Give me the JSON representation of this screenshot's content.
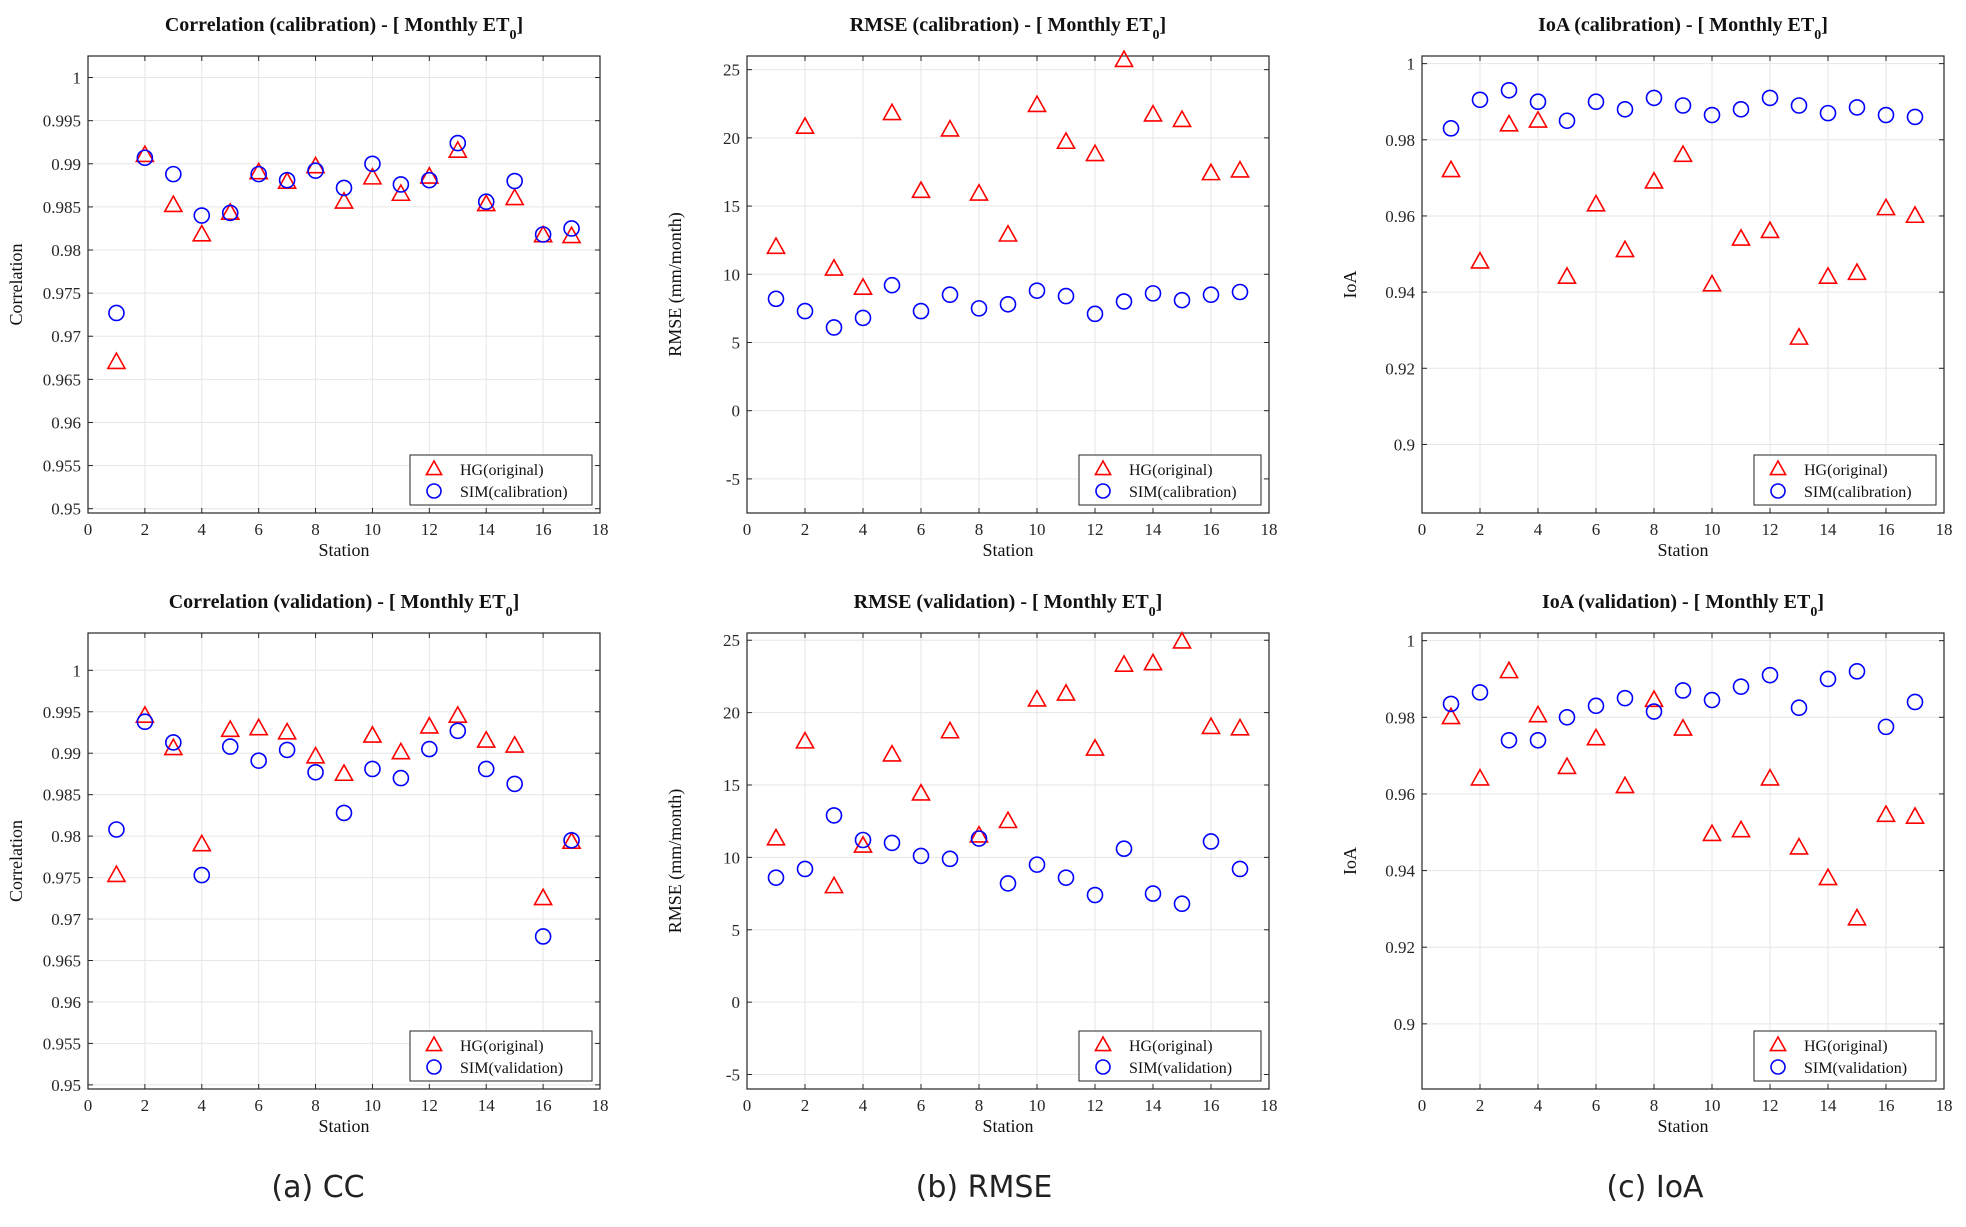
{
  "captions": [
    "(a) CC",
    "(b) RMSE",
    "(c) IoA"
  ],
  "colors": {
    "hg": "#ff0000",
    "sim": "#0000ff",
    "axis": "#262626",
    "grid": "#e6e6e6"
  },
  "chart_data": [
    {
      "type": "scatter",
      "title": "Correlation (calibration) - [ Monthly  ET",
      "title_sub": "0",
      "title_end": "]",
      "xlabel": "Station",
      "ylabel": "Correlation",
      "xlim": [
        0,
        18
      ],
      "ylim": [
        0.9495,
        1.0025
      ],
      "xticks": [
        0,
        2,
        4,
        6,
        8,
        10,
        12,
        14,
        16,
        18
      ],
      "yticks": [
        0.95,
        0.955,
        0.96,
        0.965,
        0.97,
        0.975,
        0.98,
        0.985,
        0.99,
        0.995,
        1
      ],
      "ytick_labels": [
        "0.95",
        "0.955",
        "0.96",
        "0.965",
        "0.97",
        "0.975",
        "0.98",
        "0.985",
        "0.99",
        "0.995",
        "1"
      ],
      "x": [
        1,
        2,
        3,
        4,
        5,
        6,
        7,
        8,
        9,
        10,
        11,
        12,
        13,
        14,
        15,
        16,
        17
      ],
      "series": [
        {
          "name": "HG(original)",
          "marker": "triangle",
          "values": [
            0.967,
            0.991,
            0.9852,
            0.9818,
            0.9843,
            0.989,
            0.9879,
            0.9897,
            0.9856,
            0.9884,
            0.9865,
            0.9885,
            0.9915,
            0.9853,
            0.986,
            0.9817,
            0.9816
          ]
        },
        {
          "name": "SIM(calibration)",
          "marker": "circle",
          "values": [
            0.9727,
            0.9907,
            0.9888,
            0.984,
            0.9843,
            0.9888,
            0.9881,
            0.9892,
            0.9872,
            0.99,
            0.9876,
            0.9881,
            0.9924,
            0.9856,
            0.988,
            0.9818,
            0.9825
          ]
        }
      ],
      "legend": "bottom-right"
    },
    {
      "type": "scatter",
      "title": "RMSE (calibration) - [ Monthly  ET",
      "title_sub": "0",
      "title_end": "]",
      "xlabel": "Station",
      "ylabel": "RMSE (mm/month)",
      "xlim": [
        0,
        18
      ],
      "ylim": [
        -7.5,
        26
      ],
      "xticks": [
        0,
        2,
        4,
        6,
        8,
        10,
        12,
        14,
        16,
        18
      ],
      "yticks": [
        -5,
        0,
        5,
        10,
        15,
        20,
        25
      ],
      "ytick_labels": [
        "-5",
        "0",
        "5",
        "10",
        "15",
        "20",
        "25"
      ],
      "x": [
        1,
        2,
        3,
        4,
        5,
        6,
        7,
        8,
        9,
        10,
        11,
        12,
        13,
        14,
        15,
        16,
        17
      ],
      "series": [
        {
          "name": "HG(original)",
          "marker": "triangle",
          "values": [
            12,
            20.8,
            10.4,
            9.0,
            21.8,
            16.1,
            20.6,
            15.9,
            12.9,
            22.4,
            19.7,
            18.8,
            25.7,
            21.7,
            21.3,
            17.4,
            17.6
          ]
        },
        {
          "name": "SIM(calibration)",
          "marker": "circle",
          "values": [
            8.2,
            7.3,
            6.1,
            6.8,
            9.2,
            7.3,
            8.5,
            7.5,
            7.8,
            8.8,
            8.4,
            7.1,
            8.0,
            8.6,
            8.1,
            8.5,
            8.7
          ]
        }
      ],
      "legend": "bottom-right"
    },
    {
      "type": "scatter",
      "title": "IoA (calibration) - [ Monthly  ET",
      "title_sub": "0",
      "title_end": "]",
      "xlabel": "Station",
      "ylabel": "IoA",
      "xlim": [
        0,
        18
      ],
      "ylim": [
        0.882,
        1.002
      ],
      "xticks": [
        0,
        2,
        4,
        6,
        8,
        10,
        12,
        14,
        16,
        18
      ],
      "yticks": [
        0.9,
        0.92,
        0.94,
        0.96,
        0.98,
        1
      ],
      "ytick_labels": [
        "0.9",
        "0.92",
        "0.94",
        "0.96",
        "0.98",
        "1"
      ],
      "x": [
        1,
        2,
        3,
        4,
        5,
        6,
        7,
        8,
        9,
        10,
        11,
        12,
        13,
        14,
        15,
        16,
        17
      ],
      "series": [
        {
          "name": "HG(original)",
          "marker": "triangle",
          "values": [
            0.972,
            0.948,
            0.984,
            0.985,
            0.944,
            0.963,
            0.951,
            0.969,
            0.976,
            0.942,
            0.954,
            0.956,
            0.928,
            0.944,
            0.945,
            0.962,
            0.96
          ]
        },
        {
          "name": "SIM(calibration)",
          "marker": "circle",
          "values": [
            0.983,
            0.9905,
            0.993,
            0.99,
            0.985,
            0.99,
            0.988,
            0.991,
            0.989,
            0.9865,
            0.988,
            0.991,
            0.989,
            0.987,
            0.9885,
            0.9865,
            0.986
          ]
        }
      ],
      "legend": "bottom-right"
    },
    {
      "type": "scatter",
      "title": "Correlation (validation) - [ Monthly  ET",
      "title_sub": "0",
      "title_end": "]",
      "xlabel": "Station",
      "ylabel": "Correlation",
      "xlim": [
        0,
        18
      ],
      "ylim": [
        0.9495,
        1.0045
      ],
      "xticks": [
        0,
        2,
        4,
        6,
        8,
        10,
        12,
        14,
        16,
        18
      ],
      "yticks": [
        0.95,
        0.955,
        0.96,
        0.965,
        0.97,
        0.975,
        0.98,
        0.985,
        0.99,
        0.995,
        1
      ],
      "ytick_labels": [
        "0.95",
        "0.955",
        "0.96",
        "0.965",
        "0.97",
        "0.975",
        "0.98",
        "0.985",
        "0.99",
        "0.995",
        "1"
      ],
      "x": [
        1,
        2,
        3,
        4,
        5,
        6,
        7,
        8,
        9,
        10,
        11,
        12,
        13,
        14,
        15,
        16,
        17
      ],
      "series": [
        {
          "name": "HG(original)",
          "marker": "triangle",
          "values": [
            0.9753,
            0.9945,
            0.9906,
            0.979,
            0.9928,
            0.993,
            0.9925,
            0.9896,
            0.9875,
            0.9921,
            0.9901,
            0.9932,
            0.9945,
            0.9915,
            0.9909,
            0.9725,
            0.9793
          ]
        },
        {
          "name": "SIM(validation)",
          "marker": "circle",
          "values": [
            0.9808,
            0.9938,
            0.9913,
            0.9753,
            0.9908,
            0.9891,
            0.9904,
            0.9877,
            0.9828,
            0.9881,
            0.987,
            0.9905,
            0.9927,
            0.9881,
            0.9863,
            0.9679,
            0.9795
          ]
        }
      ],
      "legend": "bottom-right"
    },
    {
      "type": "scatter",
      "title": "RMSE (validation) - [ Monthly  ET",
      "title_sub": "0",
      "title_end": "]",
      "xlabel": "Station",
      "ylabel": "RMSE (mm/month)",
      "xlim": [
        0,
        18
      ],
      "ylim": [
        -6,
        25.5
      ],
      "xticks": [
        0,
        2,
        4,
        6,
        8,
        10,
        12,
        14,
        16,
        18
      ],
      "yticks": [
        -5,
        0,
        5,
        10,
        15,
        20,
        25
      ],
      "ytick_labels": [
        "-5",
        "0",
        "5",
        "10",
        "15",
        "20",
        "25"
      ],
      "x": [
        1,
        2,
        3,
        4,
        5,
        6,
        7,
        8,
        9,
        10,
        11,
        12,
        13,
        14,
        15,
        16,
        17
      ],
      "series": [
        {
          "name": "HG(original)",
          "marker": "triangle",
          "values": [
            11.3,
            18.0,
            8.0,
            10.8,
            17.1,
            14.4,
            18.7,
            11.5,
            12.5,
            20.9,
            21.3,
            17.5,
            23.3,
            23.4,
            24.9,
            19.0,
            18.9
          ]
        },
        {
          "name": "SIM(validation)",
          "marker": "circle",
          "values": [
            8.6,
            9.2,
            12.9,
            11.2,
            11.0,
            10.1,
            9.9,
            11.3,
            8.2,
            9.5,
            8.6,
            7.4,
            10.6,
            7.5,
            6.8,
            11.1,
            9.2
          ]
        }
      ],
      "legend": "bottom-right"
    },
    {
      "type": "scatter",
      "title": "IoA (validation) - [ Monthly  ET",
      "title_sub": "0",
      "title_end": "]",
      "xlabel": "Station",
      "ylabel": "IoA",
      "xlim": [
        0,
        18
      ],
      "ylim": [
        0.883,
        1.002
      ],
      "xticks": [
        0,
        2,
        4,
        6,
        8,
        10,
        12,
        14,
        16,
        18
      ],
      "yticks": [
        0.9,
        0.92,
        0.94,
        0.96,
        0.98,
        1
      ],
      "ytick_labels": [
        "0.9",
        "0.92",
        "0.94",
        "0.96",
        "0.98",
        "1"
      ],
      "x": [
        1,
        2,
        3,
        4,
        5,
        6,
        7,
        8,
        9,
        10,
        11,
        12,
        13,
        14,
        15,
        16,
        17
      ],
      "series": [
        {
          "name": "HG(original)",
          "marker": "triangle",
          "values": [
            0.98,
            0.964,
            0.992,
            0.9805,
            0.967,
            0.9745,
            0.962,
            0.9845,
            0.977,
            0.9495,
            0.9505,
            0.964,
            0.946,
            0.938,
            0.9275,
            0.9545,
            0.954
          ]
        },
        {
          "name": "SIM(validation)",
          "marker": "circle",
          "values": [
            0.9835,
            0.9865,
            0.974,
            0.974,
            0.98,
            0.983,
            0.985,
            0.9815,
            0.987,
            0.9845,
            0.988,
            0.991,
            0.9825,
            0.99,
            0.992,
            0.9775,
            0.984
          ]
        }
      ],
      "legend": "bottom-right"
    }
  ]
}
